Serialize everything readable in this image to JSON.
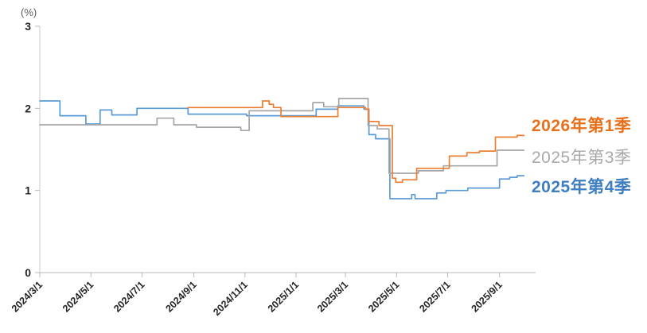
{
  "chart_data": {
    "type": "line",
    "title": "",
    "unit_label": "(%)",
    "x_unit": "days since 2024/3/1",
    "xlim": [
      0,
      592
    ],
    "ylim": [
      0,
      3
    ],
    "yticks": [
      0,
      1,
      2,
      3
    ],
    "grid": false,
    "legend_position": "right",
    "xticks": [
      {
        "label": "2024/3/1",
        "x": 0
      },
      {
        "label": "2024/5/1",
        "x": 61
      },
      {
        "label": "2024/7/1",
        "x": 122
      },
      {
        "label": "2024/9/1",
        "x": 184
      },
      {
        "label": "2024/11/1",
        "x": 245
      },
      {
        "label": "2025/1/1",
        "x": 306
      },
      {
        "label": "2025/3/1",
        "x": 365
      },
      {
        "label": "2025/5/1",
        "x": 426
      },
      {
        "label": "2025/7/1",
        "x": 487
      },
      {
        "label": "2025/9/1",
        "x": 549
      }
    ],
    "series": [
      {
        "name": "2026年第1季",
        "color": "#ED7D31",
        "text_color": "#E8701A",
        "step": "after",
        "x_end": 578,
        "points": [
          [
            177,
            2.01
          ],
          [
            266,
            2.09
          ],
          [
            274,
            2.05
          ],
          [
            279,
            2.01
          ],
          [
            288,
            1.9
          ],
          [
            356,
            2.01
          ],
          [
            389,
            1.99
          ],
          [
            393,
            1.84
          ],
          [
            405,
            1.79
          ],
          [
            421,
            1.15
          ],
          [
            425,
            1.1
          ],
          [
            433,
            1.13
          ],
          [
            450,
            1.27
          ],
          [
            489,
            1.42
          ],
          [
            510,
            1.46
          ],
          [
            525,
            1.48
          ],
          [
            544,
            1.65
          ],
          [
            570,
            1.67
          ]
        ]
      },
      {
        "name": "2025年第3季",
        "color": "#A6A6A6",
        "text_color": "#A9A9A9",
        "step": "after",
        "x_end": 578,
        "points": [
          [
            0,
            1.8
          ],
          [
            140,
            1.88
          ],
          [
            160,
            1.8
          ],
          [
            187,
            1.77
          ],
          [
            240,
            1.73
          ],
          [
            250,
            1.97
          ],
          [
            326,
            2.07
          ],
          [
            339,
            2.02
          ],
          [
            357,
            2.12
          ],
          [
            392,
            1.79
          ],
          [
            403,
            1.75
          ],
          [
            417,
            1.21
          ],
          [
            452,
            1.24
          ],
          [
            482,
            1.3
          ],
          [
            546,
            1.49
          ]
        ]
      },
      {
        "name": "2025年第4季",
        "color": "#5B9BD5",
        "text_color": "#3E7EC1",
        "step": "after",
        "x_end": 578,
        "points": [
          [
            0,
            2.09
          ],
          [
            24,
            1.91
          ],
          [
            55,
            1.81
          ],
          [
            72,
            1.98
          ],
          [
            86,
            1.92
          ],
          [
            116,
            2.0
          ],
          [
            177,
            1.93
          ],
          [
            247,
            1.91
          ],
          [
            330,
            1.99
          ],
          [
            356,
            2.03
          ],
          [
            387,
            1.99
          ],
          [
            393,
            1.68
          ],
          [
            401,
            1.63
          ],
          [
            418,
            0.9
          ],
          [
            444,
            0.95
          ],
          [
            448,
            0.9
          ],
          [
            474,
            0.97
          ],
          [
            485,
            1.0
          ],
          [
            511,
            1.03
          ],
          [
            549,
            1.14
          ],
          [
            561,
            1.16
          ],
          [
            570,
            1.18
          ]
        ]
      }
    ]
  },
  "legend": {
    "items": [
      {
        "label": "2026年第1季"
      },
      {
        "label": "2025年第3季"
      },
      {
        "label": "2025年第4季"
      }
    ]
  }
}
